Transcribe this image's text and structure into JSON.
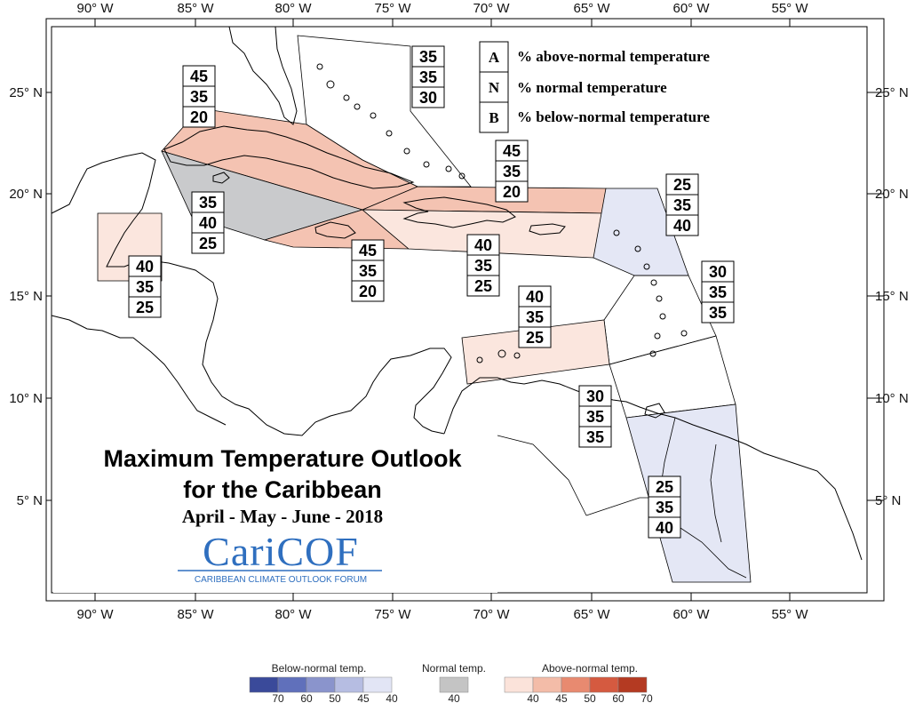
{
  "map": {
    "title_line1": "Maximum Temperature Outlook",
    "title_line2": "for the Caribbean",
    "period": "April - May - June - 2018",
    "lon_labels": [
      "90° W",
      "85° W",
      "80° W",
      "75° W",
      "70° W",
      "65° W",
      "60° W",
      "55° W"
    ],
    "lat_labels": [
      "25° N",
      "20° N",
      "15° N",
      "10° N",
      "5° N"
    ]
  },
  "key": {
    "rows": [
      {
        "letter": "A",
        "label": "% above-normal temperature"
      },
      {
        "letter": "N",
        "label": "% normal temperature"
      },
      {
        "letter": "B",
        "label": "% below-normal temperature"
      }
    ]
  },
  "zones": [
    {
      "id": "bahamas",
      "A": "35",
      "N": "35",
      "B": "30",
      "category": "none"
    },
    {
      "id": "cuba-east",
      "A": "45",
      "N": "35",
      "B": "20",
      "category": "above-45"
    },
    {
      "id": "cayman",
      "A": "35",
      "N": "40",
      "B": "25",
      "category": "normal"
    },
    {
      "id": "belize",
      "A": "40",
      "N": "35",
      "B": "25",
      "category": "above-40"
    },
    {
      "id": "jamaica",
      "A": "45",
      "N": "35",
      "B": "20",
      "category": "above-45"
    },
    {
      "id": "hispaniola-north",
      "A": "45",
      "N": "35",
      "B": "20",
      "category": "above-45"
    },
    {
      "id": "hispaniola-pr",
      "A": "40",
      "N": "35",
      "B": "25",
      "category": "above-40"
    },
    {
      "id": "leewards",
      "A": "25",
      "N": "35",
      "B": "40",
      "category": "below-40"
    },
    {
      "id": "windwards",
      "A": "30",
      "N": "35",
      "B": "35",
      "category": "none"
    },
    {
      "id": "abc-islands",
      "A": "40",
      "N": "35",
      "B": "25",
      "category": "above-40"
    },
    {
      "id": "trinidad",
      "A": "30",
      "N": "35",
      "B": "35",
      "category": "none"
    },
    {
      "id": "guianas",
      "A": "25",
      "N": "35",
      "B": "40",
      "category": "below-40"
    }
  ],
  "logo": {
    "name": "CariCOF",
    "tagline": "CARIBBEAN CLIMATE OUTLOOK FORUM"
  },
  "legend": {
    "below": {
      "title": "Below-normal temp.",
      "ticks": [
        "70",
        "60",
        "50",
        "45",
        "40"
      ],
      "colors": [
        "#3a4a9a",
        "#6070bb",
        "#8a94cc",
        "#b6bde2",
        "#e2e5f5"
      ]
    },
    "normal": {
      "title": "Normal temp.",
      "ticks": [
        "40"
      ],
      "color": "#c4c4c4"
    },
    "above": {
      "title": "Above-normal temp.",
      "ticks": [
        "40",
        "45",
        "50",
        "60",
        "70"
      ],
      "colors": [
        "#fbe3da",
        "#f3bca8",
        "#e88a70",
        "#d55a40",
        "#b43a22"
      ]
    }
  },
  "colors": {
    "above-40": "#fbe6de",
    "above-45": "#f4c3b2",
    "normal": "#c9cacc",
    "below-40": "#e4e7f5",
    "none": "none"
  }
}
